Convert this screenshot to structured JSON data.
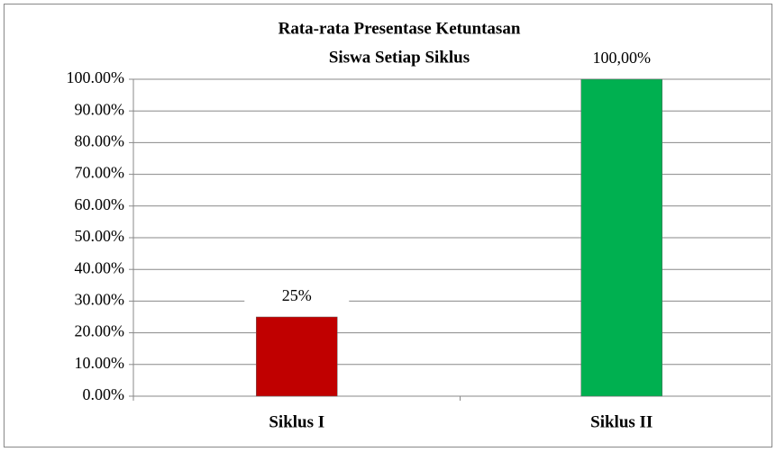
{
  "chart_data": {
    "type": "bar",
    "title": [
      "Rata-rata Presentase Ketuntasan",
      "Siswa Setiap Siklus"
    ],
    "categories": [
      "Siklus I",
      "Siklus II"
    ],
    "values": [
      25,
      100
    ],
    "value_labels": [
      "25%",
      "100,00%"
    ],
    "colors": [
      "#c00000",
      "#00b050"
    ],
    "ylim": [
      0,
      100
    ],
    "yticks": [
      {
        "value": 0,
        "label": "0.00%"
      },
      {
        "value": 10,
        "label": "10.00%"
      },
      {
        "value": 20,
        "label": "20.00%"
      },
      {
        "value": 30,
        "label": "30.00%"
      },
      {
        "value": 40,
        "label": "40.00%"
      },
      {
        "value": 50,
        "label": "50.00%"
      },
      {
        "value": 60,
        "label": "60.00%"
      },
      {
        "value": 70,
        "label": "70.00%"
      },
      {
        "value": 80,
        "label": "80.00%"
      },
      {
        "value": 90,
        "label": "90.00%"
      },
      {
        "value": 100,
        "label": "100.00%"
      }
    ],
    "grid": true
  }
}
